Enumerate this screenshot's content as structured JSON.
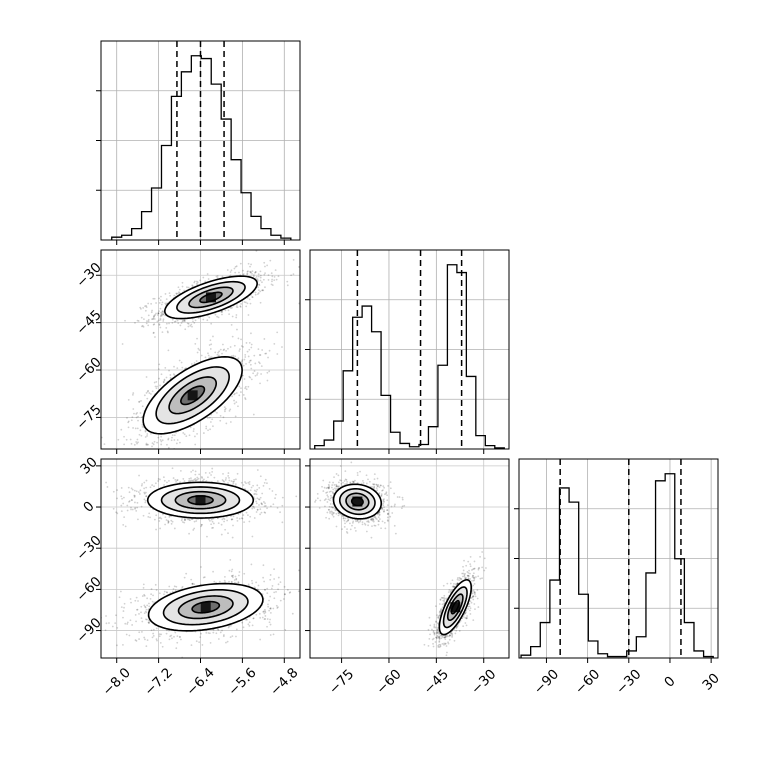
{
  "chart_data": {
    "type": "corner",
    "parameters": [
      {
        "range": [
          -8.3,
          -4.5
        ],
        "ticks": [
          -8.0,
          -7.2,
          -6.4,
          -5.6,
          -4.8
        ],
        "tick_labels": [
          "−8.0",
          "−7.2",
          "−6.4",
          "−5.6",
          "−4.8"
        ],
        "quantiles": [
          -6.85,
          -6.4,
          -5.95
        ]
      },
      {
        "range": [
          -85,
          -22
        ],
        "ticks": [
          -30,
          -45,
          -60,
          -75
        ],
        "tick_labels": [
          "−30",
          "−45",
          "−60",
          "−75"
        ],
        "x_ticks": [
          -75,
          -60,
          -45,
          -30
        ],
        "x_tick_labels": [
          "−75",
          "−60",
          "−45",
          "−30"
        ],
        "quantiles": [
          -70,
          -50,
          -37
        ]
      },
      {
        "range": [
          -110,
          35
        ],
        "ticks": [
          30,
          0,
          -30,
          -60,
          -90
        ],
        "tick_labels": [
          "30",
          "0",
          "−30",
          "−60",
          "−90"
        ],
        "x_ticks": [
          -90,
          -60,
          -30,
          0,
          30
        ],
        "x_tick_labels": [
          "−90",
          "−60",
          "−30",
          "0",
          "30"
        ],
        "quantiles": [
          -80,
          -30,
          8
        ]
      }
    ],
    "histograms": [
      {
        "param": 0,
        "bin_width": 0.19,
        "bin_centers": [
          -8.0,
          -7.81,
          -7.62,
          -7.43,
          -7.24,
          -7.05,
          -6.86,
          -6.67,
          -6.48,
          -6.29,
          -6.1,
          -5.91,
          -5.72,
          -5.53,
          -5.34,
          -5.15,
          -4.96,
          -4.77
        ],
        "counts": [
          3,
          5,
          12,
          30,
          55,
          100,
          152,
          178,
          195,
          192,
          165,
          128,
          85,
          50,
          25,
          12,
          5,
          2
        ]
      },
      {
        "param": 1,
        "bin_width": 3.0,
        "bin_centers": [
          -82,
          -79,
          -76,
          -73,
          -70,
          -67,
          -64,
          -61,
          -58,
          -55,
          -52,
          -49,
          -46,
          -43,
          -40,
          -37,
          -34,
          -31,
          -28,
          -25
        ],
        "counts": [
          3,
          8,
          25,
          70,
          118,
          128,
          105,
          48,
          15,
          5,
          2,
          4,
          20,
          75,
          165,
          158,
          65,
          12,
          3,
          1
        ]
      },
      {
        "param": 2,
        "bin_width": 7.0,
        "bin_centers": [
          -105,
          -98,
          -91,
          -84,
          -77,
          -70,
          -63,
          -56,
          -49,
          -42,
          -35,
          -28,
          -21,
          -14,
          -7,
          0,
          7,
          14,
          21,
          28
        ],
        "counts": [
          2,
          8,
          25,
          55,
          120,
          110,
          45,
          12,
          3,
          1,
          1,
          5,
          15,
          60,
          125,
          130,
          70,
          25,
          5,
          1
        ]
      }
    ],
    "panels_2d": [
      {
        "x_param": 0,
        "y_param": 1,
        "modes": [
          {
            "cx": -6.2,
            "cy": -37,
            "sx": 0.42,
            "sy": 3.2,
            "rho": 0.65
          },
          {
            "cx": -6.55,
            "cy": -68,
            "sx": 0.45,
            "sy": 5.8,
            "rho": 0.65
          }
        ]
      },
      {
        "x_param": 0,
        "y_param": 2,
        "modes": [
          {
            "cx": -6.4,
            "cy": 5,
            "sx": 0.48,
            "sy": 6.2,
            "rho": 0.0
          },
          {
            "cx": -6.3,
            "cy": -73,
            "sx": 0.52,
            "sy": 8.2,
            "rho": 0.32
          }
        ]
      },
      {
        "x_param": 1,
        "y_param": 2,
        "modes": [
          {
            "cx": -70,
            "cy": 4,
            "sx": 3.6,
            "sy": 6.0,
            "rho": -0.1
          },
          {
            "cx": -39,
            "cy": -73,
            "sx": 2.4,
            "sy": 9.5,
            "rho": 0.72
          }
        ]
      }
    ]
  }
}
